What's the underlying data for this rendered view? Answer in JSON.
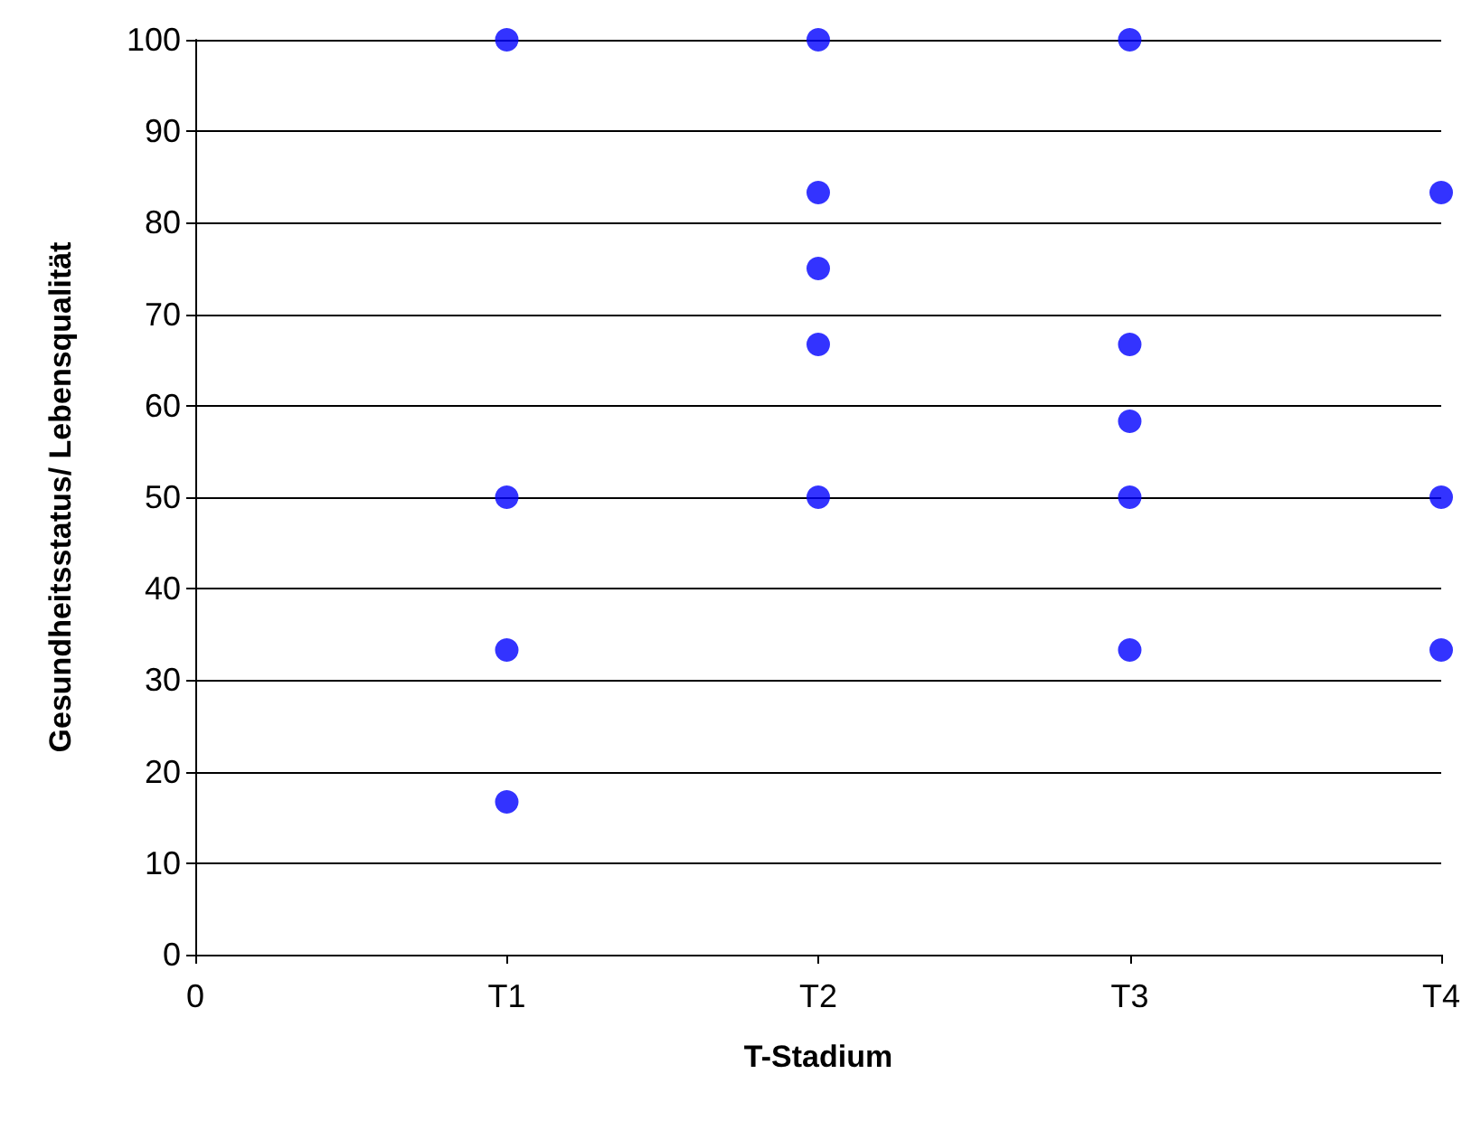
{
  "chart_data": {
    "type": "scatter",
    "xlabel": "T-Stadium",
    "ylabel": "Gesundheitsstatus/ Lebensqualität",
    "categories": [
      "0",
      "T1",
      "T2",
      "T3",
      "T4"
    ],
    "series": [
      {
        "color": "#0000ff",
        "values": [
          null,
          100,
          100,
          100,
          83.3
        ]
      },
      {
        "color": "#0000ff",
        "values": [
          null,
          50,
          83.3,
          66.7,
          50
        ]
      },
      {
        "color": "#0000ff",
        "values": [
          null,
          33.3,
          75,
          58.3,
          33.3
        ]
      },
      {
        "color": "#0000ff",
        "values": [
          null,
          16.7,
          66.7,
          50,
          null
        ]
      },
      {
        "color": "#0000ff",
        "values": [
          null,
          null,
          50,
          33.3,
          null
        ]
      }
    ],
    "marker": "circle",
    "grid": "y",
    "ylim": [
      0,
      100
    ],
    "yticks": [
      0,
      10,
      20,
      30,
      40,
      50,
      60,
      70,
      80,
      90,
      100
    ]
  }
}
